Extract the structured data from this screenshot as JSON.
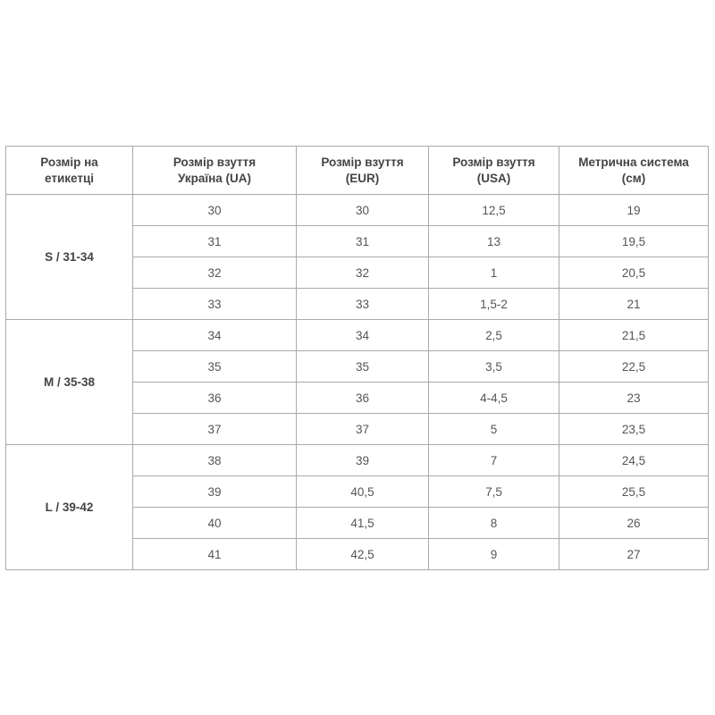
{
  "headers": [
    "Розмір на етикетці",
    "Розмір взуття Україна (UA)",
    "Розмір взуття (EUR)",
    "Розмір взуття (USA)",
    "Метрична система (см)"
  ],
  "header_lines": [
    [
      "Розмір на",
      "етикетці"
    ],
    [
      "Розмір взуття",
      "Україна (UA)"
    ],
    [
      "Розмір взуття",
      "(EUR)"
    ],
    [
      "Розмір взуття",
      "(USA)"
    ],
    [
      "Метрична система",
      "(см)"
    ]
  ],
  "groups": [
    {
      "label": "S / 31-34",
      "rows": [
        [
          "30",
          "30",
          "12,5",
          "19"
        ],
        [
          "31",
          "31",
          "13",
          "19,5"
        ],
        [
          "32",
          "32",
          "1",
          "20,5"
        ],
        [
          "33",
          "33",
          "1,5-2",
          "21"
        ]
      ]
    },
    {
      "label": "M / 35-38",
      "rows": [
        [
          "34",
          "34",
          "2,5",
          "21,5"
        ],
        [
          "35",
          "35",
          "3,5",
          "22,5"
        ],
        [
          "36",
          "36",
          "4-4,5",
          "23"
        ],
        [
          "37",
          "37",
          "5",
          "23,5"
        ]
      ]
    },
    {
      "label": "L / 39-42",
      "rows": [
        [
          "38",
          "39",
          "7",
          "24,5"
        ],
        [
          "39",
          "40,5",
          "7,5",
          "25,5"
        ],
        [
          "40",
          "41,5",
          "8",
          "26"
        ],
        [
          "41",
          "42,5",
          "9",
          "27"
        ]
      ]
    }
  ]
}
